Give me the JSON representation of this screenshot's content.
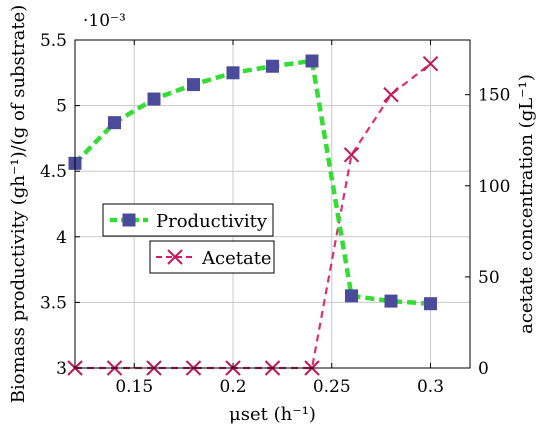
{
  "chart_data": {
    "type": "line",
    "x_title": "μset (h⁻¹)",
    "y_left_title": "Biomass productivity (gh⁻¹)/(g of substrate)",
    "y_right_title": "acetate concentration (gL⁻¹)",
    "y_left_multiplier": "·10⁻³",
    "xlim": [
      0.12,
      0.32
    ],
    "y_left_lim": [
      3.0,
      5.5
    ],
    "y_right_lim": [
      0,
      180
    ],
    "x_ticks": [
      "0.15",
      "0.2",
      "0.25",
      "0.3"
    ],
    "x_tick_values": [
      0.15,
      0.2,
      0.25,
      0.3
    ],
    "y_left_ticks": [
      "3",
      "3.5",
      "4",
      "4.5",
      "5",
      "5.5"
    ],
    "y_left_tick_values": [
      3.0,
      3.5,
      4.0,
      4.5,
      5.0,
      5.5
    ],
    "y_right_ticks": [
      "0",
      "50",
      "100",
      "150"
    ],
    "y_right_tick_values": [
      0,
      50,
      100,
      150
    ],
    "grid": true,
    "legend_placement": "center-left",
    "series": [
      {
        "name": "Productivity",
        "axis": "left",
        "color": "#33dd33",
        "marker_color": "#4b4b9b",
        "marker": "square",
        "x": [
          0.12,
          0.14,
          0.16,
          0.18,
          0.2,
          0.22,
          0.24,
          0.26,
          0.28,
          0.3
        ],
        "y": [
          4.56,
          4.87,
          5.05,
          5.16,
          5.25,
          5.3,
          5.34,
          3.55,
          3.51,
          3.49
        ]
      },
      {
        "name": "Acetate",
        "axis": "right",
        "color": "#d81b60",
        "marker_color": "#c2185b",
        "marker": "cross",
        "x": [
          0.12,
          0.14,
          0.16,
          0.18,
          0.2,
          0.22,
          0.24,
          0.26,
          0.28,
          0.3
        ],
        "y": [
          0,
          0,
          0,
          0,
          0,
          0,
          0,
          117,
          150,
          167
        ]
      }
    ]
  }
}
